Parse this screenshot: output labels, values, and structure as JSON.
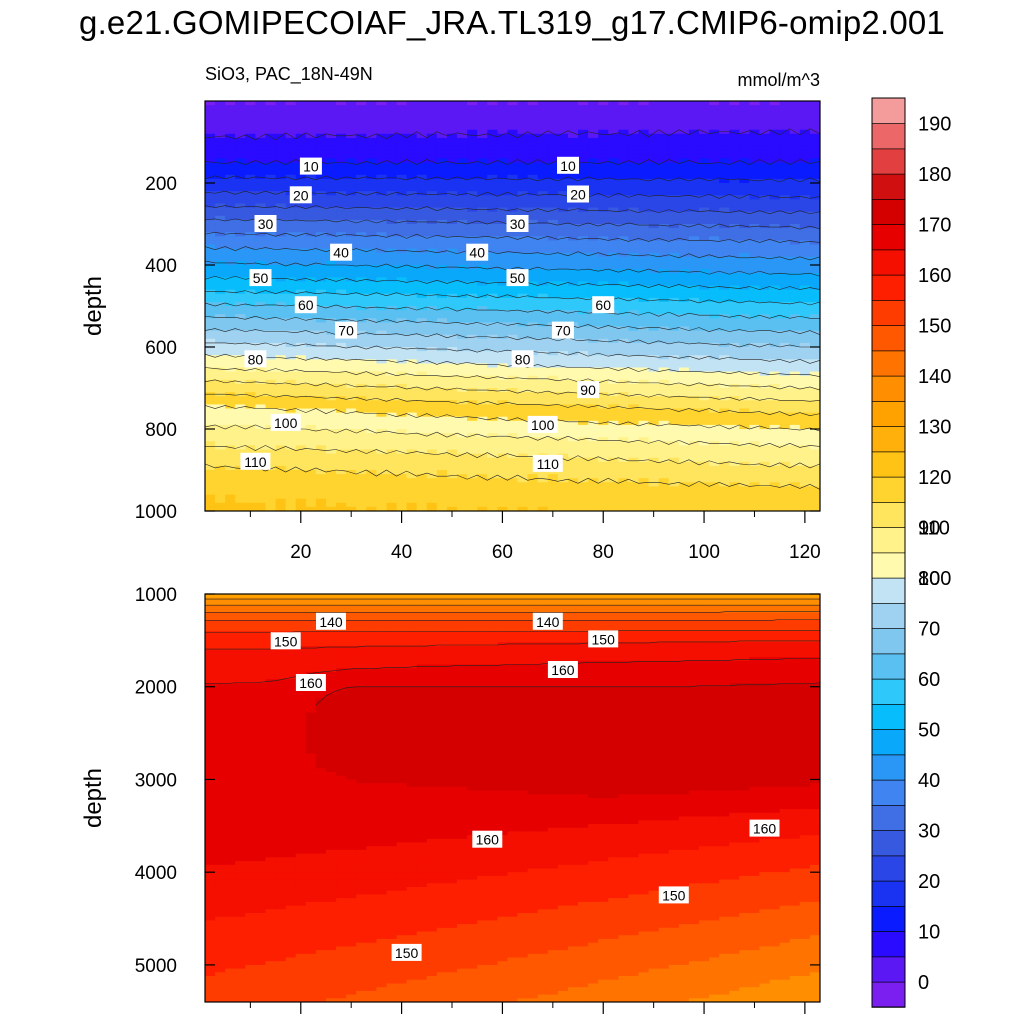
{
  "title": "g.e21.GOMIPECOIAF_JRA.TL319_g17.CMIP6-omip2.001",
  "subtitle_left": "SiO3, PAC_18N-49N",
  "subtitle_right": "mmol/m^3",
  "colorbar": {
    "labels": [
      "0",
      "10",
      "20",
      "30",
      "40",
      "50",
      "60",
      "70",
      "80",
      "90",
      "100",
      "110",
      "120",
      "130",
      "140",
      "150",
      "160",
      "170",
      "180",
      "190"
    ],
    "colors": [
      "#7a1ff0",
      "#5b18f5",
      "#2a0bff",
      "#0a1cff",
      "#1a33f2",
      "#2b46e6",
      "#3759e0",
      "#3f6ee5",
      "#3f84f0",
      "#2a97f7",
      "#0aa8fb",
      "#07bdfb",
      "#2ec8fb",
      "#5ac0f2",
      "#80c7f0",
      "#9fd2f1",
      "#c2e3f4",
      "#fffaae",
      "#fff28a",
      "#ffe55e",
      "#ffd42e",
      "#ffc315",
      "#ffb00a",
      "#ffa200",
      "#ff8e00",
      "#ff7300",
      "#ff5800",
      "#ff3c00",
      "#fe1f00",
      "#f50f00",
      "#e60000",
      "#d40000",
      "#d01010",
      "#e24040",
      "#ec6868",
      "#f49c9c"
    ]
  },
  "chart_data": [
    {
      "type": "heatmap",
      "title": "",
      "xlabel": "",
      "ylabel": "depth",
      "xlim": [
        1,
        123
      ],
      "ylim": [
        1000,
        0
      ],
      "xticks": [
        20,
        40,
        60,
        80,
        100,
        120
      ],
      "yticks": [
        200,
        400,
        600,
        800,
        1000
      ],
      "contour_levels": [
        10,
        20,
        30,
        40,
        50,
        60,
        70,
        80,
        90,
        100,
        110
      ],
      "profile_depth": [
        0,
        25,
        60,
        100,
        150,
        200,
        250,
        300,
        350,
        400,
        450,
        500,
        550,
        600,
        650,
        700,
        750,
        800,
        850,
        900,
        950,
        1000
      ],
      "profile_value_west": [
        0,
        1,
        3,
        6,
        10,
        17,
        24,
        32,
        39,
        46,
        53,
        61,
        69,
        77,
        85,
        93,
        101,
        106,
        111,
        116,
        119,
        121
      ],
      "profile_value_east": [
        0,
        2,
        4,
        7,
        10,
        16,
        22,
        29,
        36,
        42,
        49,
        56,
        63,
        70,
        77,
        85,
        93,
        100,
        106,
        111,
        116,
        119
      ],
      "contour_labels": [
        {
          "text": "10",
          "x": 22,
          "y": 160
        },
        {
          "text": "10",
          "x": 73,
          "y": 158
        },
        {
          "text": "20",
          "x": 20,
          "y": 230
        },
        {
          "text": "20",
          "x": 75,
          "y": 228
        },
        {
          "text": "30",
          "x": 13,
          "y": 300
        },
        {
          "text": "30",
          "x": 63,
          "y": 300
        },
        {
          "text": "40",
          "x": 28,
          "y": 370
        },
        {
          "text": "40",
          "x": 55,
          "y": 370
        },
        {
          "text": "50",
          "x": 12,
          "y": 432
        },
        {
          "text": "50",
          "x": 63,
          "y": 432
        },
        {
          "text": "60",
          "x": 21,
          "y": 498
        },
        {
          "text": "60",
          "x": 80,
          "y": 498
        },
        {
          "text": "70",
          "x": 29,
          "y": 560
        },
        {
          "text": "70",
          "x": 72,
          "y": 560
        },
        {
          "text": "80",
          "x": 11,
          "y": 630
        },
        {
          "text": "80",
          "x": 64,
          "y": 630
        },
        {
          "text": "90",
          "x": 77,
          "y": 705
        },
        {
          "text": "100",
          "x": 17,
          "y": 785
        },
        {
          "text": "100",
          "x": 68,
          "y": 790
        },
        {
          "text": "110",
          "x": 11,
          "y": 880
        },
        {
          "text": "110",
          "x": 69,
          "y": 885
        }
      ]
    },
    {
      "type": "heatmap",
      "title": "",
      "xlabel": "",
      "ylabel": "depth",
      "xlim": [
        1,
        123
      ],
      "ylim": [
        5400,
        1000
      ],
      "yticks": [
        1000,
        2000,
        3000,
        4000,
        5000
      ],
      "contour_levels": [
        130,
        140,
        150,
        160,
        170
      ],
      "core_170": {
        "x_start": 18,
        "depth_top": 2000,
        "depth_bottom": 3100,
        "depth_center": 2450
      },
      "contour_labels": [
        {
          "text": "140",
          "x": 26,
          "y": 1300
        },
        {
          "text": "140",
          "x": 69,
          "y": 1300
        },
        {
          "text": "150",
          "x": 17,
          "y": 1510
        },
        {
          "text": "150",
          "x": 80,
          "y": 1490
        },
        {
          "text": "160",
          "x": 22,
          "y": 1960
        },
        {
          "text": "160",
          "x": 72,
          "y": 1820
        },
        {
          "text": "160",
          "x": 57,
          "y": 3650
        },
        {
          "text": "160",
          "x": 112,
          "y": 3530
        },
        {
          "text": "150",
          "x": 94,
          "y": 4250
        },
        {
          "text": "150",
          "x": 41,
          "y": 4870
        }
      ]
    }
  ]
}
